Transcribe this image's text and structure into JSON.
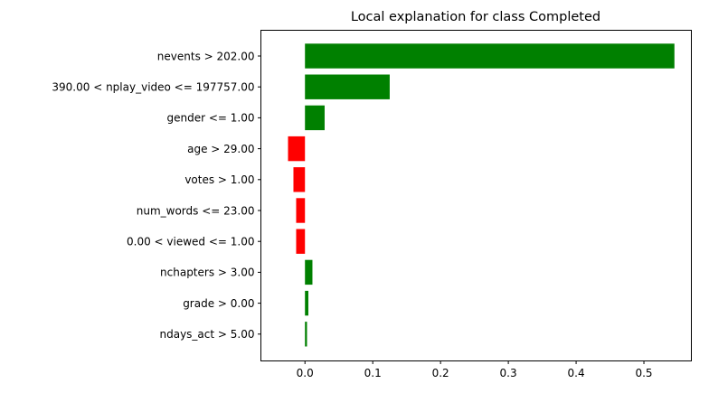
{
  "chart_data": {
    "type": "bar",
    "orientation": "horizontal",
    "title": "Local explanation for class Completed",
    "xlabel": "",
    "ylabel": "",
    "categories": [
      "nevents > 202.00",
      "390.00 < nplay_video <= 197757.00",
      "gender <= 1.00",
      "age > 29.00",
      "votes > 1.00",
      "num_words <= 23.00",
      "0.00 < viewed <= 1.00",
      "nchapters > 3.00",
      "grade > 0.00",
      "ndays_act > 5.00"
    ],
    "values": [
      0.545,
      0.125,
      0.029,
      -0.025,
      -0.017,
      -0.013,
      -0.013,
      0.011,
      0.005,
      0.003
    ],
    "xlim": [
      -0.065,
      0.57
    ],
    "xticks": [
      {
        "value": 0.0,
        "label": "0.0"
      },
      {
        "value": 0.1,
        "label": "0.1"
      },
      {
        "value": 0.2,
        "label": "0.2"
      },
      {
        "value": 0.3,
        "label": "0.3"
      },
      {
        "value": 0.4,
        "label": "0.4"
      },
      {
        "value": 0.5,
        "label": "0.5"
      }
    ],
    "grid": false,
    "colors": {
      "positive": "#008000",
      "negative": "#ff0000"
    }
  }
}
